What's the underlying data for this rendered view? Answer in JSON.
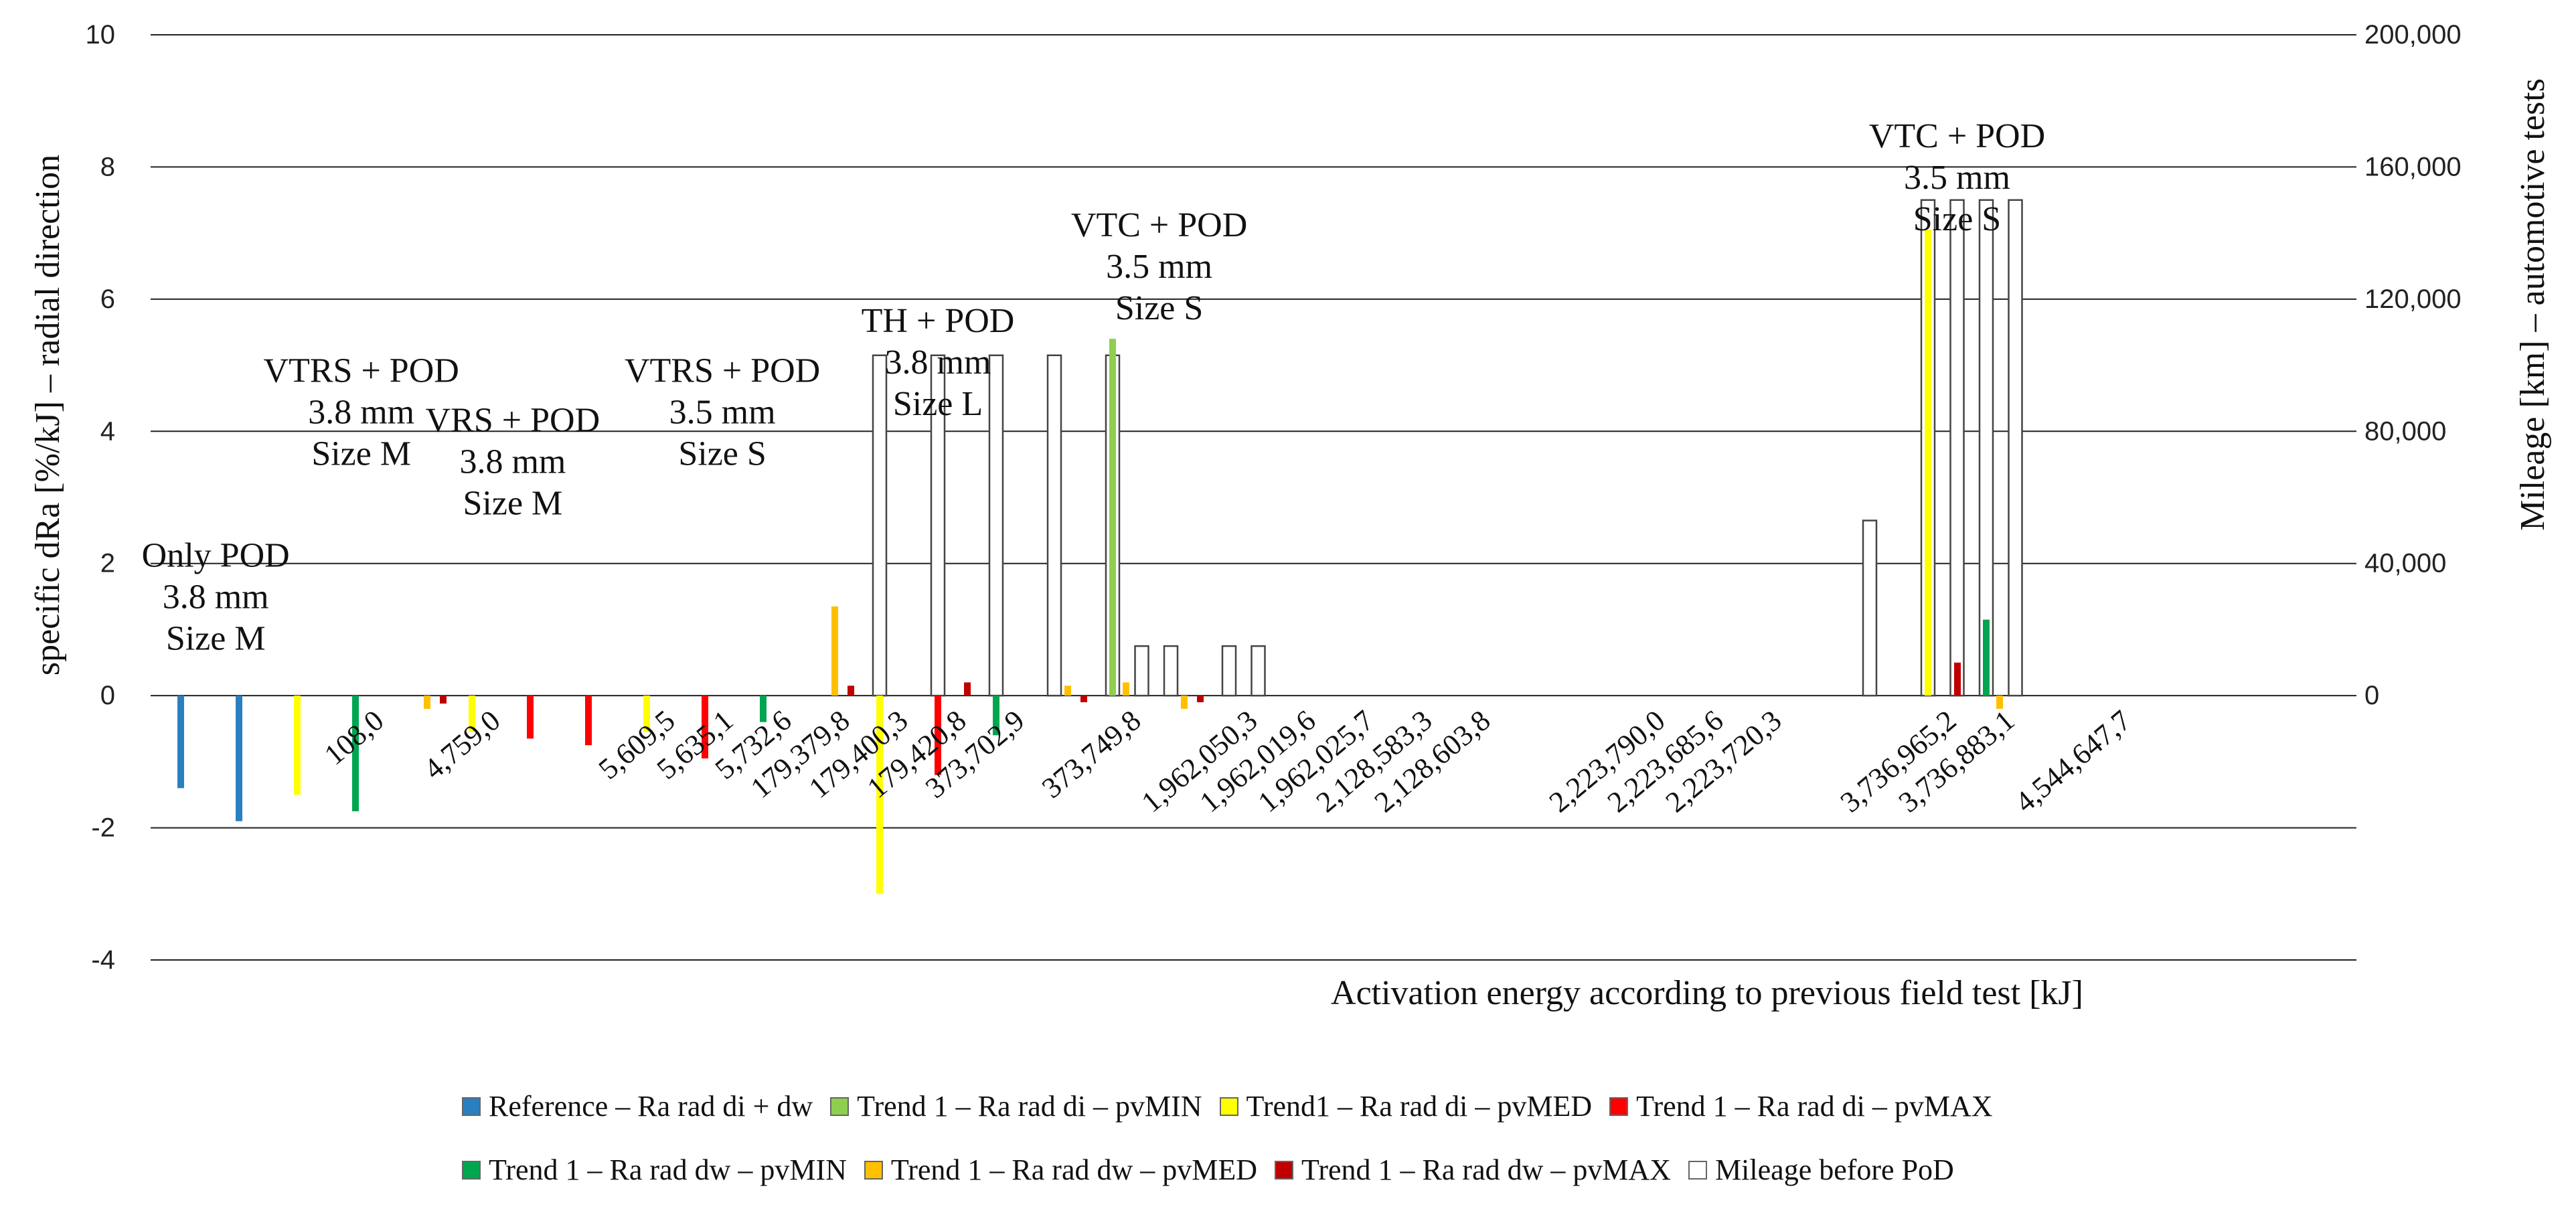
{
  "chart_data": {
    "type": "bar",
    "xlabel": "Activation energy according to previous field test [kJ]",
    "ylabel": "specific dRa [%/kJ] – radial direction",
    "y2label": "Mileage [km] – automotive tests",
    "ylim": [
      -4,
      10
    ],
    "y2lim": [
      -80000,
      200000
    ],
    "yticks": [
      "-4",
      "-2",
      "0",
      "2",
      "4",
      "6",
      "8",
      "10"
    ],
    "y2ticks": [
      "0",
      "40,000",
      "80,000",
      "120,000",
      "160,000",
      "200,000"
    ],
    "series_colors": {
      "ref": "#2a7fc0",
      "di_min": "#8fcf4f",
      "di_med": "#ffff00",
      "di_max": "#ff0000",
      "dw_min": "#00a550",
      "dw_med": "#ffc000",
      "dw_max": "#c00000",
      "mileage": "#ffffff"
    },
    "categories": [
      "",
      "",
      "",
      "108,0",
      "",
      "4,759,0",
      "",
      "",
      "5,609,5",
      "5,635,1",
      "5,732,6",
      "179,379,8",
      "179,400,3",
      "179,420,8",
      "373,702,9",
      "",
      "373,749,8",
      "",
      "1,962,050,3",
      "1,962,019,6",
      "1,962,025,7",
      "2,128,583,3",
      "2,128,603,8",
      "",
      "",
      "2,223,790,0",
      "2,223,685,6",
      "2,223,720,3",
      "",
      "",
      "3,736,965,2",
      "3,736,883,1",
      "",
      "4,544,647,7"
    ],
    "bars": [
      {
        "x": 0,
        "series": "ref",
        "value": -1.4
      },
      {
        "x": 1,
        "series": "ref",
        "value": -1.9
      },
      {
        "x": 2,
        "series": "di_med",
        "value": -1.5
      },
      {
        "x": 3,
        "series": "dw_min",
        "value": -1.75
      },
      {
        "x": 4,
        "series": "dw_med",
        "value": -0.2
      },
      {
        "x": 4,
        "series": "dw_max",
        "value": -0.12
      },
      {
        "x": 5,
        "series": "di_med",
        "value": -0.55
      },
      {
        "x": 6,
        "series": "di_max",
        "value": -0.65
      },
      {
        "x": 7,
        "series": "di_max",
        "value": -0.75
      },
      {
        "x": 8,
        "series": "di_med",
        "value": -0.55
      },
      {
        "x": 9,
        "series": "di_max",
        "value": -0.95
      },
      {
        "x": 10,
        "series": "dw_min",
        "value": -0.4
      },
      {
        "x": 11,
        "series": "dw_med",
        "value": 1.35
      },
      {
        "x": 11,
        "series": "dw_max",
        "value": 0.15
      },
      {
        "x": 12,
        "series": "di_med",
        "value": -3.0
      },
      {
        "x": 13,
        "series": "di_max",
        "value": -1.2
      },
      {
        "x": 13,
        "series": "dw_max",
        "value": 0.2
      },
      {
        "x": 14,
        "series": "dw_min",
        "value": -0.6
      },
      {
        "x": 15,
        "series": "dw_med",
        "value": 0.15
      },
      {
        "x": 15,
        "series": "dw_max",
        "value": -0.1
      },
      {
        "x": 16,
        "series": "di_min",
        "value": 5.4
      },
      {
        "x": 16,
        "series": "dw_med",
        "value": 0.2
      },
      {
        "x": 17,
        "series": "dw_med",
        "value": -0.2
      },
      {
        "x": 17,
        "series": "dw_max",
        "value": -0.1
      },
      {
        "x": 30,
        "series": "di_med",
        "value": 7.05
      },
      {
        "x": 30,
        "series": "dw_max",
        "value": 0.5
      },
      {
        "x": 31,
        "series": "dw_min",
        "value": 1.15
      },
      {
        "x": 31,
        "series": "dw_med",
        "value": -0.2
      }
    ],
    "mileage": [
      {
        "x": 12,
        "value": 103000
      },
      {
        "x": 13,
        "value": 103000
      },
      {
        "x": 14,
        "value": 103000
      },
      {
        "x": 15,
        "value": 103000
      },
      {
        "x": 16,
        "value": 103000
      },
      {
        "x": 16.5,
        "value": 15000
      },
      {
        "x": 17,
        "value": 15000
      },
      {
        "x": 18,
        "value": 15000
      },
      {
        "x": 18.5,
        "value": 15000
      },
      {
        "x": 29,
        "value": 53000
      },
      {
        "x": 30,
        "value": 150000
      },
      {
        "x": 30.5,
        "value": 150000
      },
      {
        "x": 31,
        "value": 150000
      },
      {
        "x": 31.5,
        "value": 150000
      }
    ],
    "annotations": [
      {
        "lines": [
          "Only POD",
          "3.8 mm",
          "Size M"
        ],
        "x": 0.6,
        "y": 1.95
      },
      {
        "lines": [
          "VTRS + POD",
          "3.8 mm",
          "Size M"
        ],
        "x": 3.1,
        "y": 4.75
      },
      {
        "lines": [
          "VRS + POD",
          "3.8 mm",
          "Size M"
        ],
        "x": 5.7,
        "y": 4.0
      },
      {
        "lines": [
          "VTRS + POD",
          "3.5 mm",
          "Size S"
        ],
        "x": 9.3,
        "y": 4.75
      },
      {
        "lines": [
          "TH + POD",
          "3.8 mm",
          "Size L"
        ],
        "x": 13.0,
        "y": 5.5
      },
      {
        "lines": [
          "VTC + POD",
          "3.5 mm",
          "Size S"
        ],
        "x": 16.8,
        "y": 6.95
      },
      {
        "lines": [
          "VTC + POD",
          "3.5 mm",
          "Size S"
        ],
        "x": 30.5,
        "y": 8.3
      }
    ]
  },
  "legend": [
    {
      "label": "Reference – Ra rad di + dw",
      "color": "#2a7fc0"
    },
    {
      "label": "Trend 1 – Ra rad di – pvMIN",
      "color": "#8fcf4f"
    },
    {
      "label": "Trend1 – Ra rad di – pvMED",
      "color": "#ffff00"
    },
    {
      "label": "Trend 1 – Ra rad di – pvMAX",
      "color": "#ff0000"
    },
    {
      "label": "Trend 1  – Ra rad dw – pvMIN",
      "color": "#00a550"
    },
    {
      "label": "Trend 1 – Ra rad dw – pvMED",
      "color": "#ffc000"
    },
    {
      "label": "Trend 1 – Ra rad dw – pvMAX",
      "color": "#c00000"
    },
    {
      "label": "Mileage before PoD",
      "color": "#ffffff"
    }
  ]
}
